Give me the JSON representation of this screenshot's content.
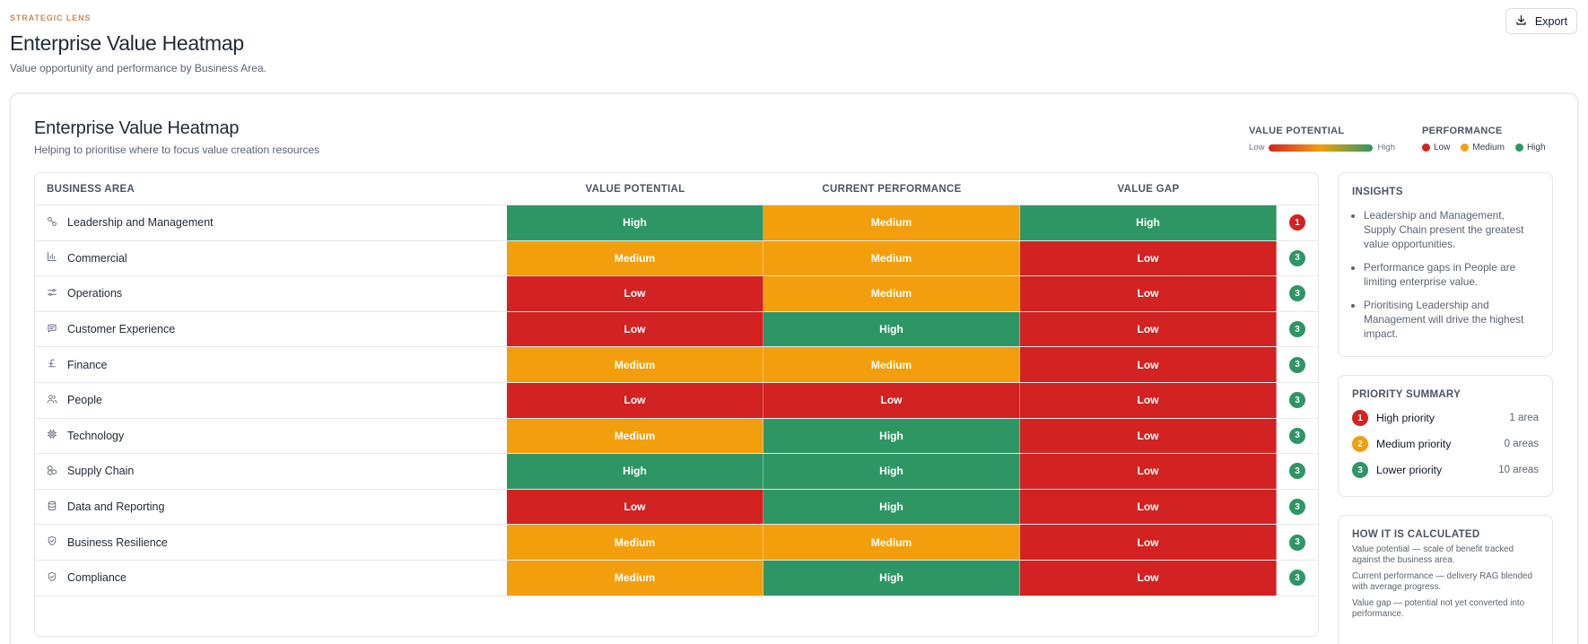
{
  "header": {
    "eyebrow": "STRATEGIC LENS",
    "title": "Enterprise Value Heatmap",
    "subtitle": "Value opportunity and performance by Business Area.",
    "export_label": "Export"
  },
  "card": {
    "title": "Enterprise Value Heatmap",
    "subtitle": "Helping to prioritise where to focus value creation resources"
  },
  "legend": {
    "value_potential": {
      "title": "VALUE POTENTIAL",
      "low": "Low",
      "high": "High"
    },
    "performance": {
      "title": "PERFORMANCE",
      "items": [
        "Low",
        "Medium",
        "High"
      ]
    }
  },
  "colors": {
    "high": "#2e9665",
    "medium": "#f39f0d",
    "low": "#d22222"
  },
  "table": {
    "columns": [
      "BUSINESS AREA",
      "VALUE POTENTIAL",
      "CURRENT PERFORMANCE",
      "VALUE GAP"
    ],
    "rows": [
      {
        "area": "Leadership and Management",
        "icon": "people-link-icon",
        "value_potential": "High",
        "current_performance": "Medium",
        "value_gap": "High",
        "priority": "1"
      },
      {
        "area": "Commercial",
        "icon": "bar-chart-icon",
        "value_potential": "Medium",
        "current_performance": "Medium",
        "value_gap": "Low",
        "priority": "3"
      },
      {
        "area": "Operations",
        "icon": "sliders-icon",
        "value_potential": "Low",
        "current_performance": "Medium",
        "value_gap": "Low",
        "priority": "3"
      },
      {
        "area": "Customer Experience",
        "icon": "chat-icon",
        "value_potential": "Low",
        "current_performance": "High",
        "value_gap": "Low",
        "priority": "3"
      },
      {
        "area": "Finance",
        "icon": "pound-icon",
        "value_potential": "Medium",
        "current_performance": "Medium",
        "value_gap": "Low",
        "priority": "3"
      },
      {
        "area": "People",
        "icon": "users-icon",
        "value_potential": "Low",
        "current_performance": "Low",
        "value_gap": "Low",
        "priority": "3"
      },
      {
        "area": "Technology",
        "icon": "chip-icon",
        "value_potential": "Medium",
        "current_performance": "High",
        "value_gap": "Low",
        "priority": "3"
      },
      {
        "area": "Supply Chain",
        "icon": "boxes-icon",
        "value_potential": "High",
        "current_performance": "High",
        "value_gap": "Low",
        "priority": "3"
      },
      {
        "area": "Data and Reporting",
        "icon": "database-icon",
        "value_potential": "Low",
        "current_performance": "High",
        "value_gap": "Low",
        "priority": "3"
      },
      {
        "area": "Business Resilience",
        "icon": "shield-check-icon",
        "value_potential": "Medium",
        "current_performance": "Medium",
        "value_gap": "Low",
        "priority": "3"
      },
      {
        "area": "Compliance",
        "icon": "shield-check-icon",
        "value_potential": "Medium",
        "current_performance": "High",
        "value_gap": "Low",
        "priority": "3"
      }
    ]
  },
  "insights": {
    "title": "INSIGHTS",
    "items": [
      "Leadership and Management, Supply Chain present the greatest value opportunities.",
      "Performance gaps in People are limiting enterprise value.",
      "Prioritising Leadership and Management will drive the highest impact."
    ]
  },
  "priority_summary": {
    "title": "PRIORITY SUMMARY",
    "items": [
      {
        "badge": "1",
        "label": "High priority",
        "count": "1 area"
      },
      {
        "badge": "2",
        "label": "Medium priority",
        "count": "0 areas"
      },
      {
        "badge": "3",
        "label": "Lower priority",
        "count": "10 areas"
      }
    ]
  },
  "calculation": {
    "title": "HOW IT IS CALCULATED",
    "items": [
      "Value potential — scale of benefit tracked against the business area.",
      "Current performance — delivery RAG blended with average progress.",
      "Value gap — potential not yet converted into performance."
    ]
  }
}
